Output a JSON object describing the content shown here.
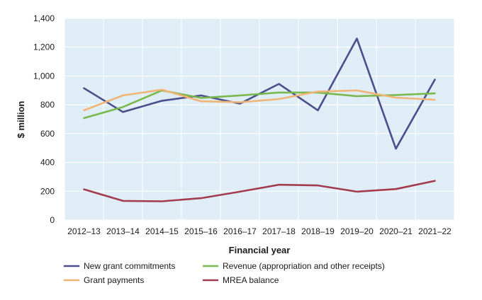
{
  "chart_data": {
    "type": "line",
    "title": "",
    "xlabel": "Financial year",
    "ylabel": "$ million",
    "ylim": [
      0,
      1400
    ],
    "yticks": [
      0,
      200,
      400,
      600,
      800,
      1000,
      1200,
      1400
    ],
    "ytick_labels": [
      "0",
      "200",
      "400",
      "600",
      "800",
      "1,000",
      "1,200",
      "1,400"
    ],
    "categories": [
      "2012–13",
      "2013–14",
      "2014–15",
      "2015–16",
      "2016–17",
      "2017–18",
      "2018–19",
      "2019–20",
      "2020–21",
      "2021–22"
    ],
    "grid": true,
    "plot_background": "#dfeef6",
    "legend_position": "bottom",
    "series": [
      {
        "name": "New grant commitments",
        "color": "#4a4e8c",
        "values": [
          915,
          750,
          828,
          865,
          808,
          945,
          762,
          1260,
          495,
          975
        ]
      },
      {
        "name": "Revenue (appropriation and other receipts)",
        "color": "#79b84f",
        "values": [
          708,
          785,
          900,
          848,
          865,
          885,
          885,
          860,
          868,
          880
        ]
      },
      {
        "name": "Grant payments",
        "color": "#f0b576",
        "values": [
          762,
          865,
          905,
          825,
          818,
          840,
          892,
          900,
          850,
          835
        ]
      },
      {
        "name": "MREA balance",
        "color": "#a33b4e",
        "values": [
          213,
          133,
          130,
          152,
          197,
          245,
          240,
          197,
          215,
          272
        ]
      }
    ]
  }
}
